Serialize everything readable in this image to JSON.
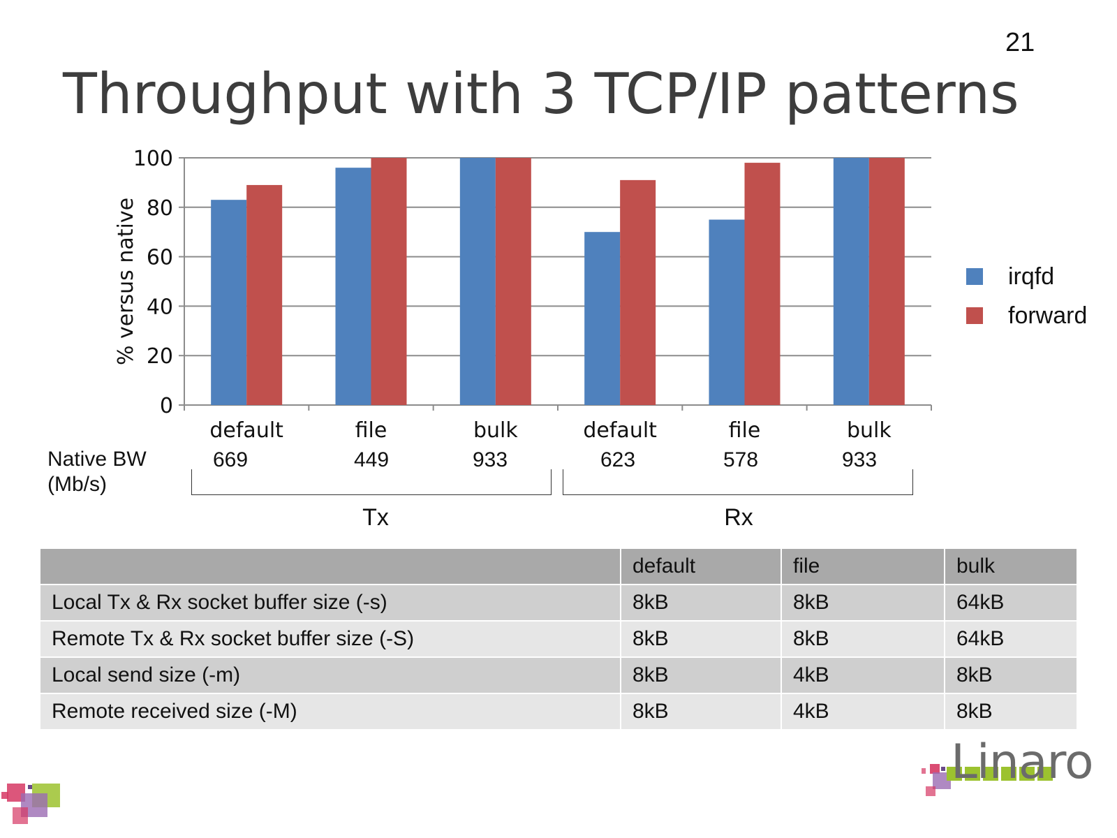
{
  "page_number": "21",
  "title": "Throughput with 3 TCP/IP patterns",
  "colors": {
    "irqfd": "#4f81bd",
    "forward": "#c0504d",
    "grid": "#8c8c8c"
  },
  "chart_data": {
    "type": "bar",
    "categories": [
      "default",
      "file",
      "bulk",
      "default",
      "file",
      "bulk"
    ],
    "series": [
      {
        "name": "irqfd",
        "values": [
          83,
          96,
          100,
          70,
          75,
          100
        ]
      },
      {
        "name": "forward",
        "values": [
          89,
          100,
          100,
          91,
          98,
          100
        ]
      }
    ],
    "ylabel": "% versus native",
    "ylim": [
      0,
      100
    ],
    "yticks": [
      0,
      20,
      40,
      60,
      80,
      100
    ],
    "grid": true,
    "legend": "right"
  },
  "native_bw": {
    "label_line1": "Native BW",
    "label_line2": "(Mb/s)",
    "values": [
      "669",
      "449",
      "933",
      "623",
      "578",
      "933"
    ]
  },
  "groups": [
    "Tx",
    "Rx"
  ],
  "table": {
    "headers": [
      "",
      "default",
      "file",
      "bulk"
    ],
    "rows": [
      [
        "Local Tx & Rx socket buffer size (-s)",
        "8kB",
        "8kB",
        "64kB"
      ],
      [
        "Remote Tx & Rx socket buffer size (-S)",
        "8kB",
        "8kB",
        "64kB"
      ],
      [
        "Local send size (-m)",
        "8kB",
        "4kB",
        "8kB"
      ],
      [
        "Remote received size (-M)",
        "8kB",
        "4kB",
        "8kB"
      ]
    ]
  },
  "logo_text": "Linaro"
}
